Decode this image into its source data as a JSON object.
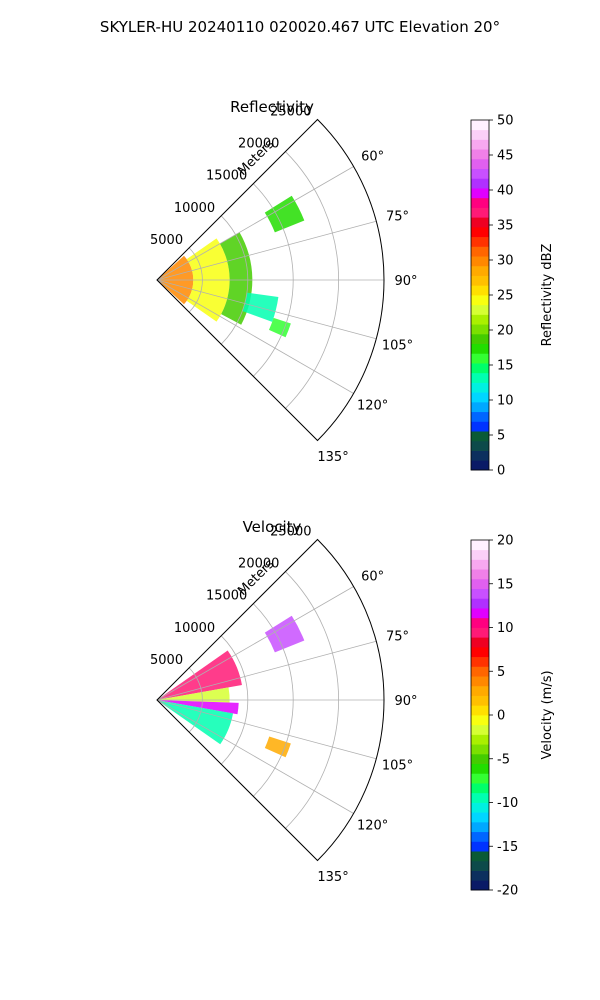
{
  "suptitle": "SKYLER-HU  20240110  020020.467 UTC Elevation 20°",
  "colors": {
    "reflectivity_scale": [
      "#0a1a66",
      "#0c2f5e",
      "#0d4a4a",
      "#0a5a36",
      "#0033ff",
      "#0066ff",
      "#00a8ff",
      "#00d6ff",
      "#00f0e0",
      "#00ffb0",
      "#00ff6a",
      "#33ff33",
      "#22dd00",
      "#44cc00",
      "#7be000",
      "#aaf000",
      "#d6ff33",
      "#f8ff10",
      "#ffe000",
      "#ffc000",
      "#ffaa00",
      "#ff8800",
      "#ff6600",
      "#ff3300",
      "#ff0000",
      "#ee0022",
      "#ff1a77",
      "#ff0080",
      "#e000ff",
      "#b030ff",
      "#c850ff",
      "#e060f0",
      "#f080e8",
      "#f8a8f0",
      "#fbd0f8",
      "#fff0ff"
    ],
    "velocity_scale": [
      "#0a1a66",
      "#0c2f5e",
      "#0d4a4a",
      "#0a5a36",
      "#0033ff",
      "#0066ff",
      "#00a8ff",
      "#00d6ff",
      "#00f0e0",
      "#00ffb0",
      "#00ff6a",
      "#33ff33",
      "#22dd00",
      "#44cc00",
      "#7be000",
      "#aaf000",
      "#d6ff33",
      "#f8ff10",
      "#ffe000",
      "#ffc000",
      "#ffaa00",
      "#ff8800",
      "#ff6600",
      "#ff3300",
      "#ff0000",
      "#ee0022",
      "#ff1a77",
      "#ff0080",
      "#e000ff",
      "#b030ff",
      "#c850ff",
      "#e060f0",
      "#f080e8",
      "#f8a8f0",
      "#fbd0f8",
      "#fff0ff"
    ]
  },
  "chart_data": [
    {
      "type": "polar_sector",
      "title": "Reflectivity",
      "radial_label": "Meters",
      "radial_ticks": [
        5000,
        10000,
        15000,
        20000,
        25000
      ],
      "radial_max": 25000,
      "angle_ticks": [
        "60°",
        "75°",
        "90°",
        "105°",
        "120°",
        "135°"
      ],
      "angle_tick_values": [
        60,
        75,
        90,
        105,
        120,
        135
      ],
      "angle_range": [
        45,
        135
      ],
      "grid": true,
      "colorbar": {
        "label": "Reflectivity dBZ",
        "min": 0,
        "max": 50,
        "ticks": [
          0,
          5,
          10,
          15,
          20,
          25,
          30,
          35,
          40,
          45,
          50
        ]
      },
      "echo_regions": [
        {
          "az_range": [
            48,
            132
          ],
          "r_range": [
            0,
            4000
          ],
          "value": 30
        },
        {
          "az_range": [
            55,
            125
          ],
          "r_range": [
            4000,
            8000
          ],
          "value": 24
        },
        {
          "az_range": [
            60,
            118
          ],
          "r_range": [
            8000,
            10500
          ],
          "value": 19
        },
        {
          "az_range": [
            58,
            68
          ],
          "r_range": [
            14000,
            17500
          ],
          "value": 17
        },
        {
          "az_range": [
            98,
            110
          ],
          "r_range": [
            10000,
            13500
          ],
          "value": 13
        },
        {
          "az_range": [
            108,
            114
          ],
          "r_range": [
            13500,
            15500
          ],
          "value": 16
        }
      ]
    },
    {
      "type": "polar_sector",
      "title": "Velocity",
      "radial_label": "Meters",
      "radial_ticks": [
        5000,
        10000,
        15000,
        20000,
        25000
      ],
      "radial_max": 25000,
      "angle_ticks": [
        "60°",
        "75°",
        "90°",
        "105°",
        "120°",
        "135°"
      ],
      "angle_tick_values": [
        60,
        75,
        90,
        105,
        120,
        135
      ],
      "angle_range": [
        45,
        135
      ],
      "grid": true,
      "colorbar": {
        "label": "Velocity (m/s)",
        "min": -20,
        "max": 20,
        "ticks": [
          -20,
          -15,
          -10,
          -5,
          0,
          5,
          10,
          15,
          20
        ]
      },
      "echo_regions": [
        {
          "az_range": [
            55,
            80
          ],
          "r_range": [
            0,
            9500
          ],
          "value": 9
        },
        {
          "az_range": [
            80,
            92
          ],
          "r_range": [
            0,
            8000
          ],
          "value": -2
        },
        {
          "az_range": [
            92,
            100
          ],
          "r_range": [
            0,
            9000
          ],
          "value": 12
        },
        {
          "az_range": [
            100,
            125
          ],
          "r_range": [
            0,
            8500
          ],
          "value": -10
        },
        {
          "az_range": [
            58,
            68
          ],
          "r_range": [
            14000,
            17500
          ],
          "value": 14
        },
        {
          "az_range": [
            108,
            114
          ],
          "r_range": [
            13000,
            15500
          ],
          "value": 3
        }
      ]
    }
  ]
}
